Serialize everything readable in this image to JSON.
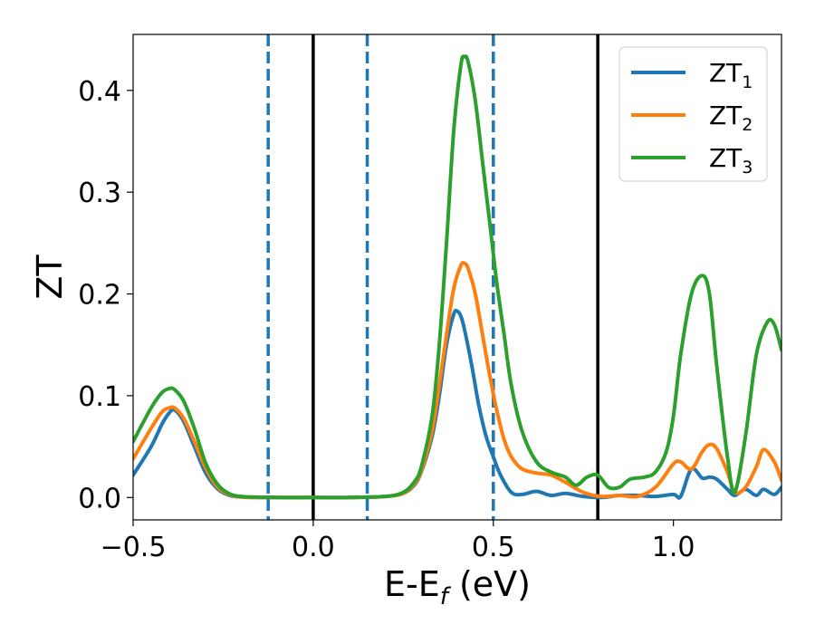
{
  "chart_data": {
    "type": "line",
    "xlabel": {
      "main": "E-E",
      "sub": "f",
      "unit": " (eV)"
    },
    "ylabel": "ZT",
    "xlim": [
      -0.5,
      1.3
    ],
    "ylim": [
      -0.022,
      0.455
    ],
    "x_ticks": [
      -0.5,
      0.0,
      0.5,
      1.0
    ],
    "x_tick_labels": [
      "−0.5",
      "0.0",
      "0.5",
      "1.0"
    ],
    "y_ticks": [
      0.0,
      0.1,
      0.2,
      0.3,
      0.4
    ],
    "y_tick_labels": [
      "0.0",
      "0.1",
      "0.2",
      "0.3",
      "0.4"
    ],
    "grid": false,
    "legend_position": "top-right",
    "vlines_solid": [
      0.0,
      0.79
    ],
    "vlines_dashed": [
      -0.125,
      0.15,
      0.5
    ],
    "vline_solid_color": "#000000",
    "vline_dashed_color": "#1f77b4",
    "series": [
      {
        "name": "ZT",
        "subscript": "1",
        "color": "#1f77b4",
        "x": [
          -0.5,
          -0.45,
          -0.42,
          -0.4,
          -0.385,
          -0.36,
          -0.33,
          -0.3,
          -0.27,
          -0.24,
          -0.2,
          -0.1,
          0.0,
          0.1,
          0.2,
          0.25,
          0.28,
          0.3,
          0.33,
          0.35,
          0.37,
          0.39,
          0.4,
          0.41,
          0.42,
          0.44,
          0.46,
          0.48,
          0.5,
          0.52,
          0.55,
          0.58,
          0.62,
          0.66,
          0.7,
          0.75,
          0.8,
          0.85,
          0.9,
          0.95,
          1.0,
          1.02,
          1.05,
          1.08,
          1.1,
          1.12,
          1.15,
          1.17,
          1.2,
          1.23,
          1.25,
          1.28,
          1.3
        ],
        "y": [
          0.022,
          0.05,
          0.072,
          0.083,
          0.086,
          0.075,
          0.05,
          0.025,
          0.01,
          0.003,
          0.0005,
          0.0,
          0.0,
          0.0,
          0.001,
          0.004,
          0.012,
          0.025,
          0.06,
          0.1,
          0.15,
          0.18,
          0.183,
          0.178,
          0.165,
          0.13,
          0.09,
          0.06,
          0.04,
          0.022,
          0.005,
          0.003,
          0.006,
          0.002,
          0.004,
          0.001,
          0.0,
          0.002,
          0.002,
          0.001,
          0.003,
          0.001,
          0.028,
          0.019,
          0.02,
          0.018,
          0.008,
          0.002,
          0.008,
          0.002,
          0.008,
          0.003,
          0.01
        ]
      },
      {
        "name": "ZT",
        "subscript": "2",
        "color": "#ff7f0e",
        "x": [
          -0.5,
          -0.45,
          -0.42,
          -0.4,
          -0.385,
          -0.36,
          -0.33,
          -0.3,
          -0.27,
          -0.24,
          -0.2,
          -0.1,
          0.0,
          0.1,
          0.2,
          0.25,
          0.28,
          0.3,
          0.33,
          0.35,
          0.37,
          0.39,
          0.41,
          0.42,
          0.43,
          0.45,
          0.47,
          0.49,
          0.51,
          0.53,
          0.55,
          0.58,
          0.62,
          0.66,
          0.7,
          0.75,
          0.8,
          0.85,
          0.9,
          0.95,
          1.0,
          1.02,
          1.05,
          1.08,
          1.1,
          1.12,
          1.15,
          1.17,
          1.2,
          1.23,
          1.25,
          1.28,
          1.3
        ],
        "y": [
          0.038,
          0.068,
          0.084,
          0.088,
          0.088,
          0.078,
          0.055,
          0.03,
          0.012,
          0.004,
          0.0005,
          0.0,
          0.0,
          0.0,
          0.001,
          0.004,
          0.013,
          0.026,
          0.065,
          0.11,
          0.16,
          0.205,
          0.228,
          0.23,
          0.225,
          0.2,
          0.16,
          0.12,
          0.085,
          0.057,
          0.04,
          0.028,
          0.024,
          0.022,
          0.015,
          0.005,
          0.001,
          0.002,
          0.001,
          0.01,
          0.033,
          0.035,
          0.028,
          0.045,
          0.052,
          0.048,
          0.025,
          0.005,
          0.01,
          0.03,
          0.047,
          0.035,
          0.017
        ]
      },
      {
        "name": "ZT",
        "subscript": "3",
        "color": "#2ca02c",
        "x": [
          -0.5,
          -0.45,
          -0.42,
          -0.4,
          -0.385,
          -0.36,
          -0.33,
          -0.3,
          -0.27,
          -0.24,
          -0.2,
          -0.1,
          0.0,
          0.1,
          0.2,
          0.25,
          0.28,
          0.3,
          0.33,
          0.35,
          0.37,
          0.39,
          0.41,
          0.42,
          0.43,
          0.45,
          0.47,
          0.49,
          0.51,
          0.53,
          0.55,
          0.58,
          0.62,
          0.66,
          0.7,
          0.73,
          0.76,
          0.79,
          0.82,
          0.85,
          0.88,
          0.92,
          0.95,
          0.98,
          1.0,
          1.02,
          1.05,
          1.08,
          1.1,
          1.12,
          1.15,
          1.17,
          1.2,
          1.23,
          1.26,
          1.28,
          1.3
        ],
        "y": [
          0.055,
          0.088,
          0.103,
          0.107,
          0.106,
          0.095,
          0.068,
          0.035,
          0.015,
          0.005,
          0.001,
          0.0,
          0.0,
          0.0,
          0.001,
          0.005,
          0.015,
          0.03,
          0.08,
          0.15,
          0.25,
          0.36,
          0.425,
          0.433,
          0.428,
          0.39,
          0.33,
          0.27,
          0.21,
          0.16,
          0.11,
          0.065,
          0.035,
          0.025,
          0.02,
          0.012,
          0.02,
          0.022,
          0.01,
          0.01,
          0.018,
          0.02,
          0.025,
          0.045,
          0.08,
          0.14,
          0.2,
          0.218,
          0.2,
          0.13,
          0.04,
          0.005,
          0.06,
          0.14,
          0.172,
          0.17,
          0.145
        ]
      }
    ]
  }
}
